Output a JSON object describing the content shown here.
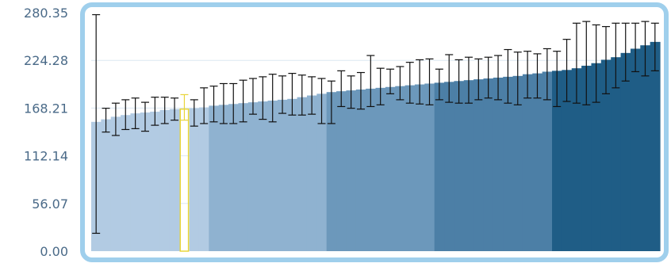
{
  "chart_data": {
    "type": "bar",
    "title": "",
    "xlabel": "",
    "ylabel": "",
    "ylim": [
      0,
      280.35
    ],
    "yticks": [
      "0.00",
      "56.07",
      "112.14",
      "168.21",
      "224.28",
      "280.35"
    ],
    "grid": true,
    "legend": "none",
    "highlight_index": 9,
    "values": [
      152,
      155,
      158,
      160,
      162,
      163,
      164,
      166,
      167,
      167,
      168,
      169,
      171,
      172,
      173,
      174,
      175,
      176,
      177,
      178,
      179,
      181,
      183,
      185,
      187,
      188,
      189,
      190,
      191,
      192,
      193,
      194,
      195,
      196,
      197,
      198,
      199,
      200,
      201,
      202,
      203,
      204,
      205,
      206,
      208,
      209,
      211,
      212,
      213,
      215,
      218,
      221,
      225,
      228,
      233,
      238,
      242,
      246
    ],
    "error_low": [
      21,
      140,
      136,
      143,
      144,
      141,
      148,
      150,
      154,
      154,
      147,
      150,
      152,
      150,
      150,
      152,
      161,
      155,
      152,
      162,
      160,
      160,
      161,
      150,
      150,
      170,
      168,
      167,
      170,
      172,
      185,
      178,
      174,
      173,
      172,
      178,
      175,
      174,
      174,
      178,
      180,
      178,
      174,
      172,
      180,
      180,
      178,
      170,
      176,
      174,
      172,
      175,
      185,
      192,
      200,
      211,
      206,
      212
    ],
    "error_high": [
      278,
      168,
      174,
      178,
      180,
      175,
      181,
      181,
      180,
      184,
      178,
      192,
      194,
      197,
      197,
      201,
      203,
      205,
      208,
      206,
      209,
      207,
      205,
      203,
      200,
      212,
      206,
      210,
      230,
      215,
      214,
      217,
      222,
      225,
      226,
      214,
      231,
      225,
      228,
      226,
      228,
      230,
      237,
      234,
      235,
      232,
      238,
      235,
      249,
      268,
      270,
      266,
      264,
      268,
      268,
      268,
      270,
      268
    ],
    "colors": {
      "band1": "#b2cbe3",
      "band2": "#8fb2d0",
      "band3": "#6c98bb",
      "band4": "#4c7fa6",
      "band5": "#1f5d86",
      "highlight": "#e8d53b",
      "frame": "#9fcfec",
      "axis_text": "#4a6a88",
      "gridline": "#dbe7f2"
    }
  }
}
